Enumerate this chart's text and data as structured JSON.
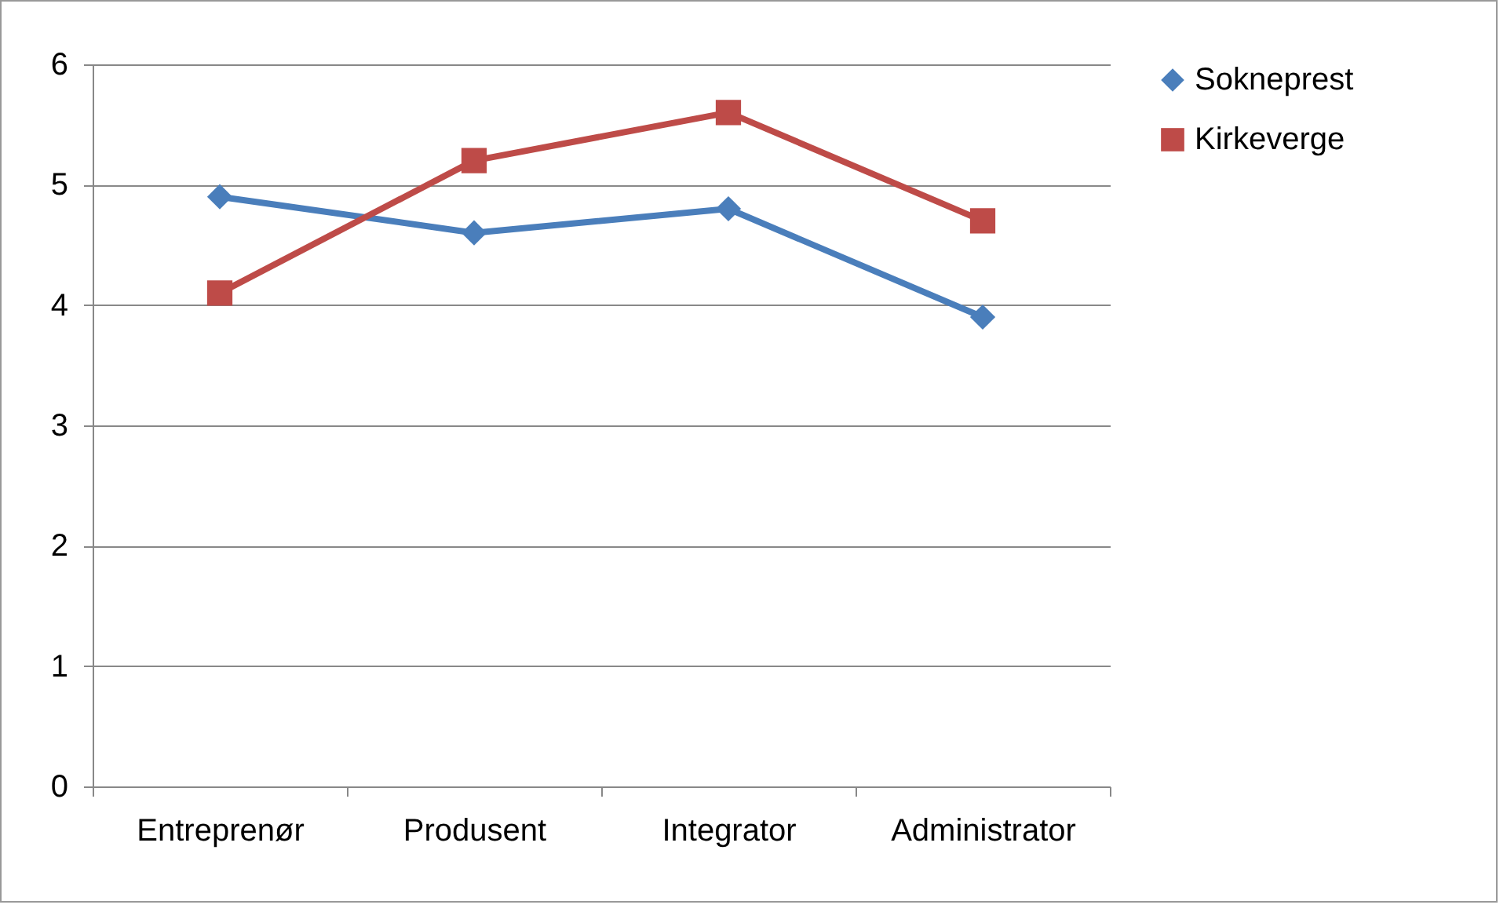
{
  "chart_data": {
    "type": "line",
    "categories": [
      "Entreprenør",
      "Produsent",
      "Integrator",
      "Administrator"
    ],
    "series": [
      {
        "name": "Sokneprest",
        "color": "#4a7ebb",
        "marker": "diamond",
        "values": [
          4.9,
          4.6,
          4.8,
          3.9
        ]
      },
      {
        "name": "Kirkeverge",
        "color": "#be4b48",
        "marker": "square",
        "values": [
          4.1,
          5.2,
          5.6,
          4.7
        ]
      }
    ],
    "ylim": [
      0,
      6
    ],
    "yticks": [
      0,
      1,
      2,
      3,
      4,
      5,
      6
    ],
    "grid": "y",
    "legend": "right",
    "line_style": "solid"
  }
}
